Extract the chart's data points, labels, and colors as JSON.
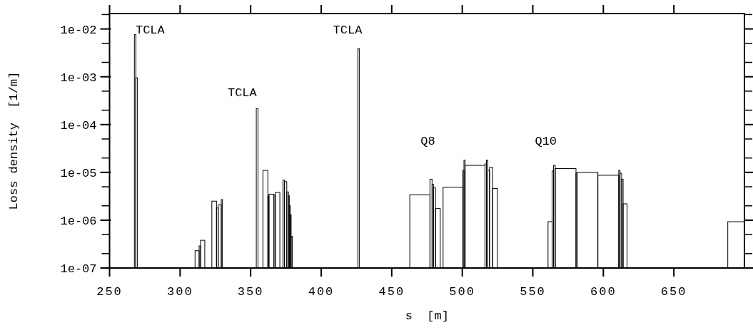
{
  "chart_data": {
    "type": "histogram",
    "xlabel": "s  [m]",
    "ylabel": "Loss density  [1/m]",
    "log": true,
    "color": "#000000",
    "xlim": [
      250,
      700
    ],
    "xticks": [
      250,
      300,
      350,
      400,
      450,
      500,
      550,
      600,
      650
    ],
    "ylim": [
      1e-07,
      0.021
    ],
    "yticks": [
      {
        "value": 1e-07,
        "label": "1e-07"
      },
      {
        "value": 2e-07,
        "label": null
      },
      {
        "value": 5e-07,
        "label": null
      },
      {
        "value": 1e-06,
        "label": "1e-06"
      },
      {
        "value": 2e-06,
        "label": null
      },
      {
        "value": 5e-06,
        "label": null
      },
      {
        "value": 1e-05,
        "label": "1e-05"
      },
      {
        "value": 2e-05,
        "label": null
      },
      {
        "value": 5e-05,
        "label": null
      },
      {
        "value": 0.0001,
        "label": "1e-04"
      },
      {
        "value": 0.0002,
        "label": null
      },
      {
        "value": 0.0005,
        "label": null
      },
      {
        "value": 0.001,
        "label": "1e-03"
      },
      {
        "value": 0.002,
        "label": null
      },
      {
        "value": 0.005,
        "label": null
      },
      {
        "value": 0.01,
        "label": "1e-02"
      },
      {
        "value": 0.02,
        "label": null
      }
    ],
    "bins": [
      267.6,
      268.6,
      269.8,
      310.6,
      313.5,
      314.5,
      317.5,
      322.5,
      325.8,
      327,
      329.2,
      330,
      354,
      355.2,
      358.7,
      362.2,
      363,
      366.5,
      367.5,
      370.7,
      372.9,
      373.9,
      375.6,
      376.8,
      377.4,
      378.2,
      378.7,
      379.5,
      426,
      427,
      462.8,
      477.1,
      478.6,
      479.6,
      481,
      484.4,
      486.4,
      500.4,
      501.2,
      502,
      516.1,
      517.1,
      518.1,
      519.3,
      521.5,
      524.9,
      560.8,
      563.7,
      564.7,
      565.9,
      580.6,
      581.4,
      596.1,
      610.9,
      611.8,
      613,
      614,
      616.8,
      688.2,
      700
    ],
    "values": [
      0.0076,
      0.00095,
      null,
      2.3e-07,
      2.9e-07,
      3.8e-07,
      null,
      2.5e-06,
      1.8e-06,
      2.1e-06,
      2.7e-06,
      null,
      0.000215,
      null,
      1.1e-05,
      3.2e-06,
      3.5e-06,
      3.3e-06,
      3.8e-06,
      null,
      6.9e-06,
      6.4e-06,
      3.9e-06,
      3.3e-06,
      2e-06,
      1.3e-06,
      4.6e-07,
      null,
      0.0039,
      null,
      3.4e-06,
      7.2e-06,
      5.6e-06,
      4.8e-06,
      1.75e-06,
      null,
      4.9e-06,
      1.1e-05,
      1.8e-05,
      1.4e-05,
      1.5e-05,
      1.8e-05,
      1.1e-05,
      1.27e-05,
      4.6e-06,
      null,
      9.3e-07,
      1.07e-05,
      1.4e-05,
      1.2e-05,
      9.6e-06,
      1e-05,
      8.7e-06,
      1.1e-05,
      9.6e-06,
      7.2e-06,
      2.2e-06,
      null,
      9.3e-07
    ],
    "annotations": [
      "TCLA",
      "TCLA",
      "TCLA",
      "Q8",
      "Q10"
    ]
  }
}
